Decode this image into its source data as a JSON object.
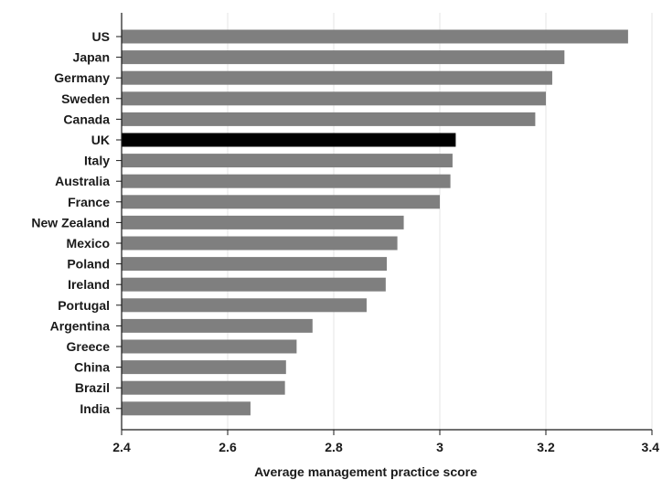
{
  "chart_data": {
    "type": "bar",
    "orientation": "horizontal",
    "categories": [
      "US",
      "Japan",
      "Germany",
      "Sweden",
      "Canada",
      "UK",
      "Italy",
      "Australia",
      "France",
      "New Zealand",
      "Mexico",
      "Poland",
      "Ireland",
      "Portugal",
      "Argentina",
      "Greece",
      "China",
      "Brazil",
      "India"
    ],
    "values": [
      3.355,
      3.235,
      3.212,
      3.2,
      3.18,
      3.03,
      3.024,
      3.02,
      3.0,
      2.932,
      2.92,
      2.9,
      2.898,
      2.862,
      2.76,
      2.73,
      2.71,
      2.708,
      2.643
    ],
    "highlight": "UK",
    "title": "",
    "xlabel": "Average management practice score",
    "ylabel": "",
    "xlim": [
      2.4,
      3.4
    ],
    "xticks": [
      2.4,
      2.6,
      2.8,
      3.0,
      3.2,
      3.4
    ],
    "xtick_labels": [
      "2.4",
      "2.6",
      "2.8",
      "3",
      "3.2",
      "3.4"
    ],
    "grid": "vertical",
    "legend": "none",
    "colors": {
      "bar": "#7f7f7f",
      "highlight_bar": "#000000",
      "grid": "#e6e6e6",
      "axis": "#1a1a1a"
    }
  }
}
